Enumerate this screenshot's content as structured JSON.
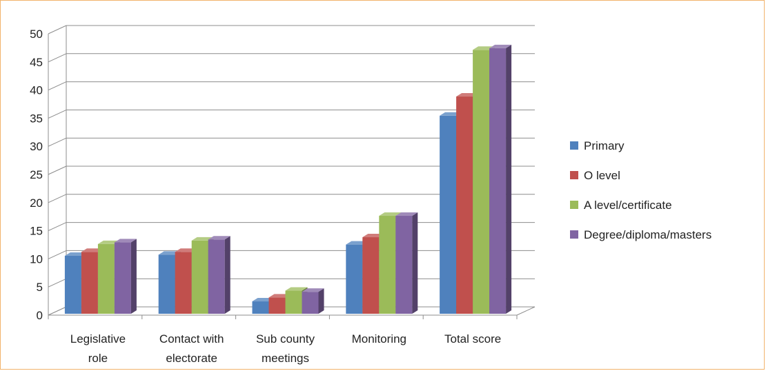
{
  "chart_data": {
    "type": "bar",
    "title": "",
    "xlabel": "",
    "ylabel": "",
    "ylim": [
      0,
      50
    ],
    "yticks": [
      0,
      5,
      10,
      15,
      20,
      25,
      30,
      35,
      40,
      45,
      50
    ],
    "categories": [
      [
        "Legislative",
        "role"
      ],
      [
        "Contact with",
        "electorate"
      ],
      [
        "Sub county",
        "meetings"
      ],
      [
        "Monitoring"
      ],
      [
        "Total score"
      ]
    ],
    "series": [
      {
        "name": "Primary",
        "color": "#4f81bd",
        "values": [
          10.3,
          10.5,
          2.2,
          12.3,
          35.2
        ]
      },
      {
        "name": "O level",
        "color": "#c0504d",
        "values": [
          11.0,
          11.0,
          2.9,
          13.6,
          38.6
        ]
      },
      {
        "name": "A level/certificate",
        "color": "#9bbb59",
        "values": [
          12.4,
          13.0,
          4.1,
          17.4,
          46.9
        ]
      },
      {
        "name": "Degree/diploma/masters",
        "color": "#8064a2",
        "values": [
          12.7,
          13.2,
          3.9,
          17.4,
          47.2
        ]
      }
    ],
    "grid": true,
    "legend": "right",
    "style": "3d-clustered-column"
  }
}
